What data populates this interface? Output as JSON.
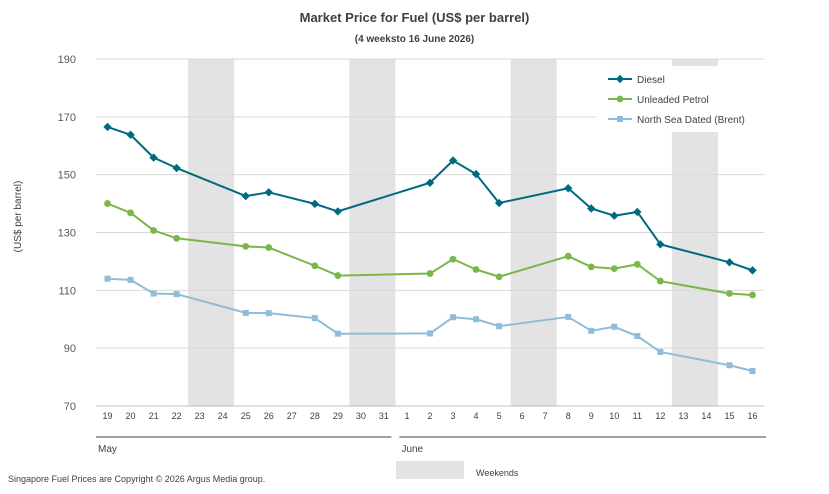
{
  "title": "Market Price for Fuel (US$ per barrel)",
  "subtitle": "(4 weeksto 16 June 2026)",
  "footer": "Singapore Fuel Prices are Copyright © 2026 Argus Media group.",
  "weekend_label": "Weekends",
  "chart_data": {
    "type": "line",
    "title": "Market Price for Fuel (US$ per barrel)",
    "ylabel": "(US$ per barrel)",
    "ylim": [
      70,
      190
    ],
    "yticks": [
      70,
      90,
      110,
      130,
      150,
      170,
      190
    ],
    "categories": [
      "19",
      "20",
      "21",
      "22",
      "23",
      "24",
      "25",
      "26",
      "27",
      "28",
      "29",
      "30",
      "31",
      "1",
      "2",
      "3",
      "4",
      "5",
      "6",
      "7",
      "8",
      "9",
      "10",
      "11",
      "12",
      "13",
      "14",
      "15",
      "16"
    ],
    "month_labels": [
      {
        "label": "May",
        "from": 0,
        "to": 12
      },
      {
        "label": "June",
        "from": 13,
        "to": 28
      }
    ],
    "weekend_indices": [
      [
        4,
        5
      ],
      [
        11,
        12
      ],
      [
        18,
        19
      ],
      [
        25,
        26
      ]
    ],
    "series": [
      {
        "name": "Diesel",
        "color": "#006b7f",
        "marker": "diamond",
        "points": [
          [
            0,
            166.5
          ],
          [
            1,
            163.8
          ],
          [
            2,
            155.9
          ],
          [
            3,
            152.3
          ],
          [
            6,
            142.6
          ],
          [
            7,
            143.9
          ],
          [
            9,
            139.9
          ],
          [
            10,
            137.3
          ],
          [
            14,
            147.2
          ],
          [
            15,
            154.9
          ],
          [
            16,
            150.2
          ],
          [
            17,
            140.2
          ],
          [
            20,
            145.3
          ],
          [
            21,
            138.3
          ],
          [
            22,
            135.8
          ],
          [
            23,
            137.1
          ],
          [
            24,
            125.9
          ],
          [
            27,
            119.7
          ],
          [
            28,
            116.9
          ]
        ]
      },
      {
        "name": "Unleaded Petrol",
        "color": "#7ab648",
        "marker": "circle",
        "points": [
          [
            0,
            140.0
          ],
          [
            1,
            136.8
          ],
          [
            2,
            130.7
          ],
          [
            3,
            128.0
          ],
          [
            6,
            125.2
          ],
          [
            7,
            124.8
          ],
          [
            9,
            118.5
          ],
          [
            10,
            115.1
          ],
          [
            14,
            115.8
          ],
          [
            15,
            120.8
          ],
          [
            16,
            117.2
          ],
          [
            17,
            114.7
          ],
          [
            20,
            121.8
          ],
          [
            21,
            118.1
          ],
          [
            22,
            117.5
          ],
          [
            23,
            119.0
          ],
          [
            24,
            113.2
          ],
          [
            27,
            108.9
          ],
          [
            28,
            108.4
          ]
        ]
      },
      {
        "name": "North Sea Dated (Brent)",
        "color": "#8ebcd9",
        "marker": "square",
        "points": [
          [
            0,
            114.0
          ],
          [
            1,
            113.6
          ],
          [
            2,
            108.9
          ],
          [
            3,
            108.7
          ],
          [
            6,
            102.2
          ],
          [
            7,
            102.1
          ],
          [
            9,
            100.4
          ],
          [
            10,
            95.0
          ],
          [
            14,
            95.1
          ],
          [
            15,
            100.7
          ],
          [
            16,
            100.0
          ],
          [
            17,
            97.6
          ],
          [
            20,
            100.8
          ],
          [
            21,
            96.0
          ],
          [
            22,
            97.4
          ],
          [
            23,
            94.2
          ],
          [
            24,
            88.7
          ],
          [
            27,
            84.1
          ],
          [
            28,
            82.1
          ]
        ]
      }
    ],
    "legend": "top-right",
    "grid": true
  }
}
